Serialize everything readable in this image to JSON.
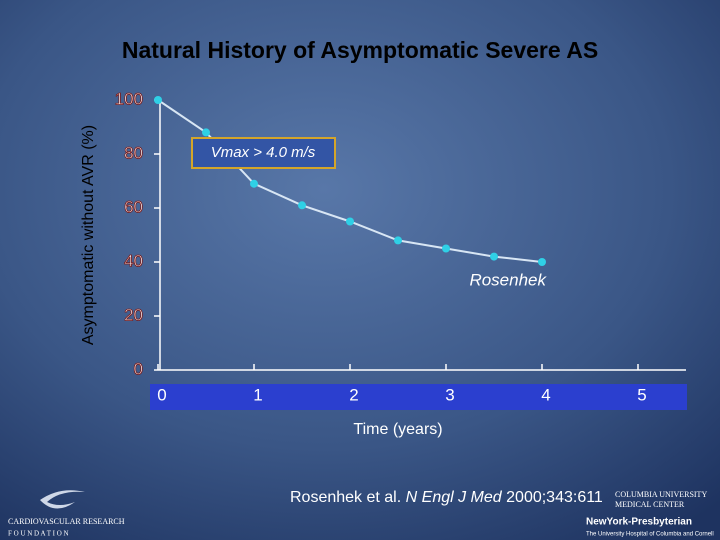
{
  "chart_data": {
    "type": "line",
    "title": "Natural History of Asymptomatic Severe AS",
    "y_label": "Asymptomatic without AVR (%)",
    "x_label": "Time (years)",
    "x": [
      0,
      0.5,
      1,
      1.5,
      2,
      2.5,
      3,
      3.5,
      4
    ],
    "series": [
      {
        "name": "Rosenhek",
        "color": "#2fd0e6",
        "values": [
          100,
          88,
          69,
          61,
          55,
          48,
          45,
          42,
          40
        ]
      }
    ],
    "xlim": [
      0,
      5.5
    ],
    "xticks": [
      0,
      1,
      2,
      3,
      4,
      5
    ],
    "ylim": [
      0,
      100
    ],
    "yticks": [
      0,
      20,
      40,
      60,
      80,
      100
    ],
    "annotation": "Vmax > 4.0 m/s"
  },
  "citation": {
    "authors": "Rosenhek et al.",
    "journal": "N Engl J Med",
    "ref": "2000;343:611"
  },
  "logos": {
    "left": [
      "CARDIOVASCULAR RESEARCH",
      "F O U N D A T I O N"
    ],
    "right": [
      "COLUMBIA UNIVERSITY",
      "MEDICAL CENTER",
      "NewYork-Presbyterian",
      "The University Hospital of Columbia and Cornell"
    ]
  }
}
